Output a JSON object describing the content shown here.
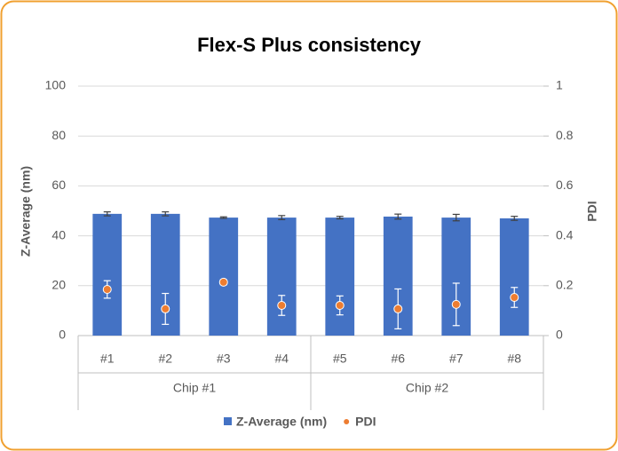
{
  "chart_data": {
    "type": "bar",
    "title": "Flex-S Plus consistency",
    "groups": [
      {
        "name": "Chip #1",
        "categories": [
          "#1",
          "#2",
          "#3",
          "#4"
        ]
      },
      {
        "name": "Chip #2",
        "categories": [
          "#5",
          "#6",
          "#7",
          "#8"
        ]
      }
    ],
    "series": [
      {
        "name": "Z-Average (nm)",
        "type": "bar",
        "color": "#4472c4",
        "values": [
          48.8,
          48.8,
          47.3,
          47.3,
          47.3,
          47.7,
          47.3,
          47.0
        ],
        "errors": [
          0.8,
          0.8,
          0.3,
          0.8,
          0.5,
          1.0,
          1.3,
          0.8
        ]
      },
      {
        "name": "PDI",
        "type": "scatter",
        "axis": "y2",
        "color": "#ed7d31",
        "values": [
          0.185,
          0.107,
          0.214,
          0.121,
          0.121,
          0.107,
          0.125,
          0.153
        ],
        "errors": [
          0.035,
          0.062,
          0.01,
          0.04,
          0.038,
          0.08,
          0.085,
          0.04
        ]
      }
    ],
    "ylabel": "Z-Average (nm)",
    "y2label": "PDI",
    "ylim": [
      0,
      100
    ],
    "yticks": [
      0,
      20,
      40,
      60,
      80,
      100
    ],
    "y2lim": [
      0,
      1
    ],
    "y2ticks": [
      0,
      0.2,
      0.4,
      0.6,
      0.8,
      1
    ],
    "grid": true,
    "legend": "bottom"
  }
}
